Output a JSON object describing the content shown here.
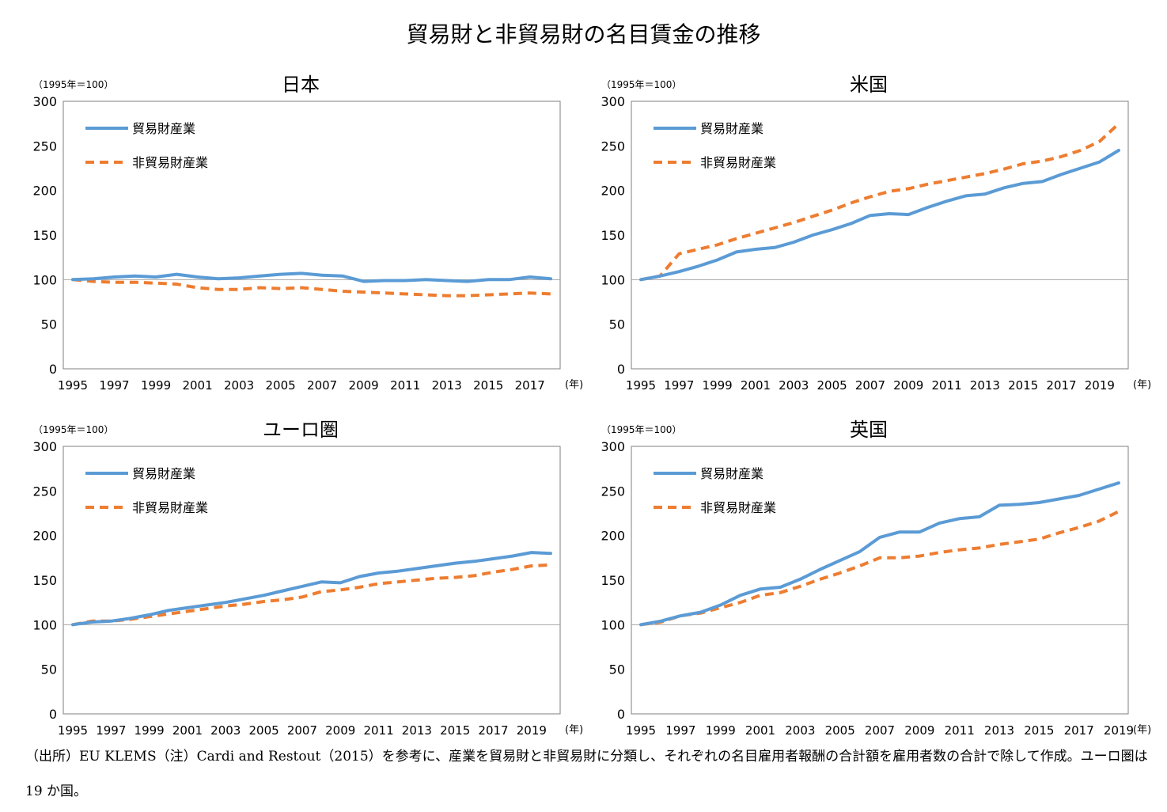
{
  "figure": {
    "title": "貿易財と非貿易財の名目賃金の推移",
    "source_note": "（出所）EU KLEMS（注）Cardi and Restout（2015）を参考に、産業を貿易財と非貿易財に分類し、それぞれの名目雇用者報酬の合計額を雇用者数の合計で除して作成。ユーロ圏は 19 か国。"
  },
  "colors": {
    "tradable": "#5b9bd5",
    "nontradable": "#ed7d31",
    "frame": "#7f7f7f",
    "refline": "#a6a6a6"
  },
  "chart_data": [
    {
      "type": "line",
      "title": "日本",
      "ylabel": "（1995年＝100）",
      "xunit": "(年)",
      "ylim": [
        0,
        300
      ],
      "yticks": [
        0,
        50,
        100,
        150,
        200,
        250,
        300
      ],
      "xticks": [
        "1995",
        "1997",
        "1999",
        "2001",
        "2003",
        "2005",
        "2007",
        "2009",
        "2011",
        "2013",
        "2015",
        "2017"
      ],
      "x": [
        1995,
        1996,
        1997,
        1998,
        1999,
        2000,
        2001,
        2002,
        2003,
        2004,
        2005,
        2006,
        2007,
        2008,
        2009,
        2010,
        2011,
        2012,
        2013,
        2014,
        2015,
        2016,
        2017,
        2018
      ],
      "series": [
        {
          "name": "貿易財産業",
          "values": [
            100,
            101,
            103,
            104,
            103,
            106,
            103,
            101,
            102,
            104,
            106,
            107,
            105,
            104,
            98,
            99,
            99,
            100,
            99,
            98,
            100,
            100,
            103,
            101
          ]
        },
        {
          "name": "非貿易財産業",
          "values": [
            100,
            98,
            97,
            97,
            96,
            95,
            91,
            89,
            89,
            91,
            90,
            91,
            89,
            87,
            86,
            85,
            84,
            83,
            82,
            82,
            83,
            84,
            85,
            84
          ]
        }
      ]
    },
    {
      "type": "line",
      "title": "米国",
      "ylabel": "（1995年＝100）",
      "xunit": "(年)",
      "ylim": [
        0,
        300
      ],
      "yticks": [
        0,
        50,
        100,
        150,
        200,
        250,
        300
      ],
      "xticks": [
        "1995",
        "1997",
        "1999",
        "2001",
        "2003",
        "2005",
        "2007",
        "2009",
        "2011",
        "2013",
        "2015",
        "2017",
        "2019"
      ],
      "x": [
        1995,
        1996,
        1997,
        1998,
        1999,
        2000,
        2001,
        2002,
        2003,
        2004,
        2005,
        2006,
        2007,
        2008,
        2009,
        2010,
        2011,
        2012,
        2013,
        2014,
        2015,
        2016,
        2017,
        2018,
        2019,
        2020
      ],
      "series": [
        {
          "name": "貿易財産業",
          "values": [
            100,
            104,
            109,
            115,
            122,
            131,
            134,
            136,
            142,
            150,
            156,
            163,
            172,
            174,
            173,
            181,
            188,
            194,
            196,
            203,
            208,
            210,
            218,
            225,
            232,
            245
          ]
        },
        {
          "name": "非貿易財産業",
          "values": [
            100,
            104,
            129,
            134,
            139,
            146,
            152,
            158,
            164,
            171,
            178,
            186,
            193,
            199,
            202,
            207,
            211,
            215,
            219,
            224,
            230,
            233,
            238,
            245,
            255,
            275
          ]
        }
      ]
    },
    {
      "type": "line",
      "title": "ユーロ圏",
      "ylabel": "（1995年＝100）",
      "xunit": "(年)",
      "ylim": [
        0,
        300
      ],
      "yticks": [
        0,
        50,
        100,
        150,
        200,
        250,
        300
      ],
      "xticks": [
        "1995",
        "1997",
        "1999",
        "2001",
        "2003",
        "2005",
        "2007",
        "2009",
        "2011",
        "2013",
        "2015",
        "2017",
        "2019"
      ],
      "x": [
        1995,
        1996,
        1997,
        1998,
        1999,
        2000,
        2001,
        2002,
        2003,
        2004,
        2005,
        2006,
        2007,
        2008,
        2009,
        2010,
        2011,
        2012,
        2013,
        2014,
        2015,
        2016,
        2017,
        2018,
        2019,
        2020
      ],
      "series": [
        {
          "name": "貿易財産業",
          "values": [
            100,
            103,
            104,
            107,
            111,
            116,
            119,
            122,
            125,
            129,
            133,
            138,
            143,
            148,
            147,
            154,
            158,
            160,
            163,
            166,
            169,
            171,
            174,
            177,
            181,
            180
          ]
        },
        {
          "name": "非貿易財産業",
          "values": [
            100,
            104,
            104,
            106,
            109,
            112,
            115,
            118,
            121,
            123,
            126,
            128,
            131,
            137,
            139,
            142,
            146,
            148,
            150,
            152,
            153,
            155,
            159,
            162,
            166,
            167
          ]
        }
      ]
    },
    {
      "type": "line",
      "title": "英国",
      "ylabel": "（1995年＝100）",
      "xunit": "(年)",
      "ylim": [
        0,
        300
      ],
      "yticks": [
        0,
        50,
        100,
        150,
        200,
        250,
        300
      ],
      "xticks": [
        "1995",
        "1997",
        "1999",
        "2001",
        "2003",
        "2005",
        "2007",
        "2009",
        "2011",
        "2013",
        "2015",
        "2017",
        "2019"
      ],
      "x": [
        1995,
        1996,
        1997,
        1998,
        1999,
        2000,
        2001,
        2002,
        2003,
        2004,
        2005,
        2006,
        2007,
        2008,
        2009,
        2010,
        2011,
        2012,
        2013,
        2014,
        2015,
        2016,
        2017,
        2018,
        2019
      ],
      "series": [
        {
          "name": "貿易財産業",
          "values": [
            100,
            104,
            110,
            114,
            122,
            133,
            140,
            142,
            151,
            162,
            172,
            182,
            198,
            204,
            204,
            214,
            219,
            221,
            234,
            235,
            237,
            241,
            245,
            252,
            259
          ]
        },
        {
          "name": "非貿易財産業",
          "values": [
            100,
            103,
            110,
            113,
            119,
            125,
            133,
            136,
            143,
            151,
            158,
            166,
            175,
            175,
            177,
            181,
            184,
            186,
            190,
            193,
            196,
            203,
            209,
            216,
            227
          ]
        }
      ]
    }
  ]
}
